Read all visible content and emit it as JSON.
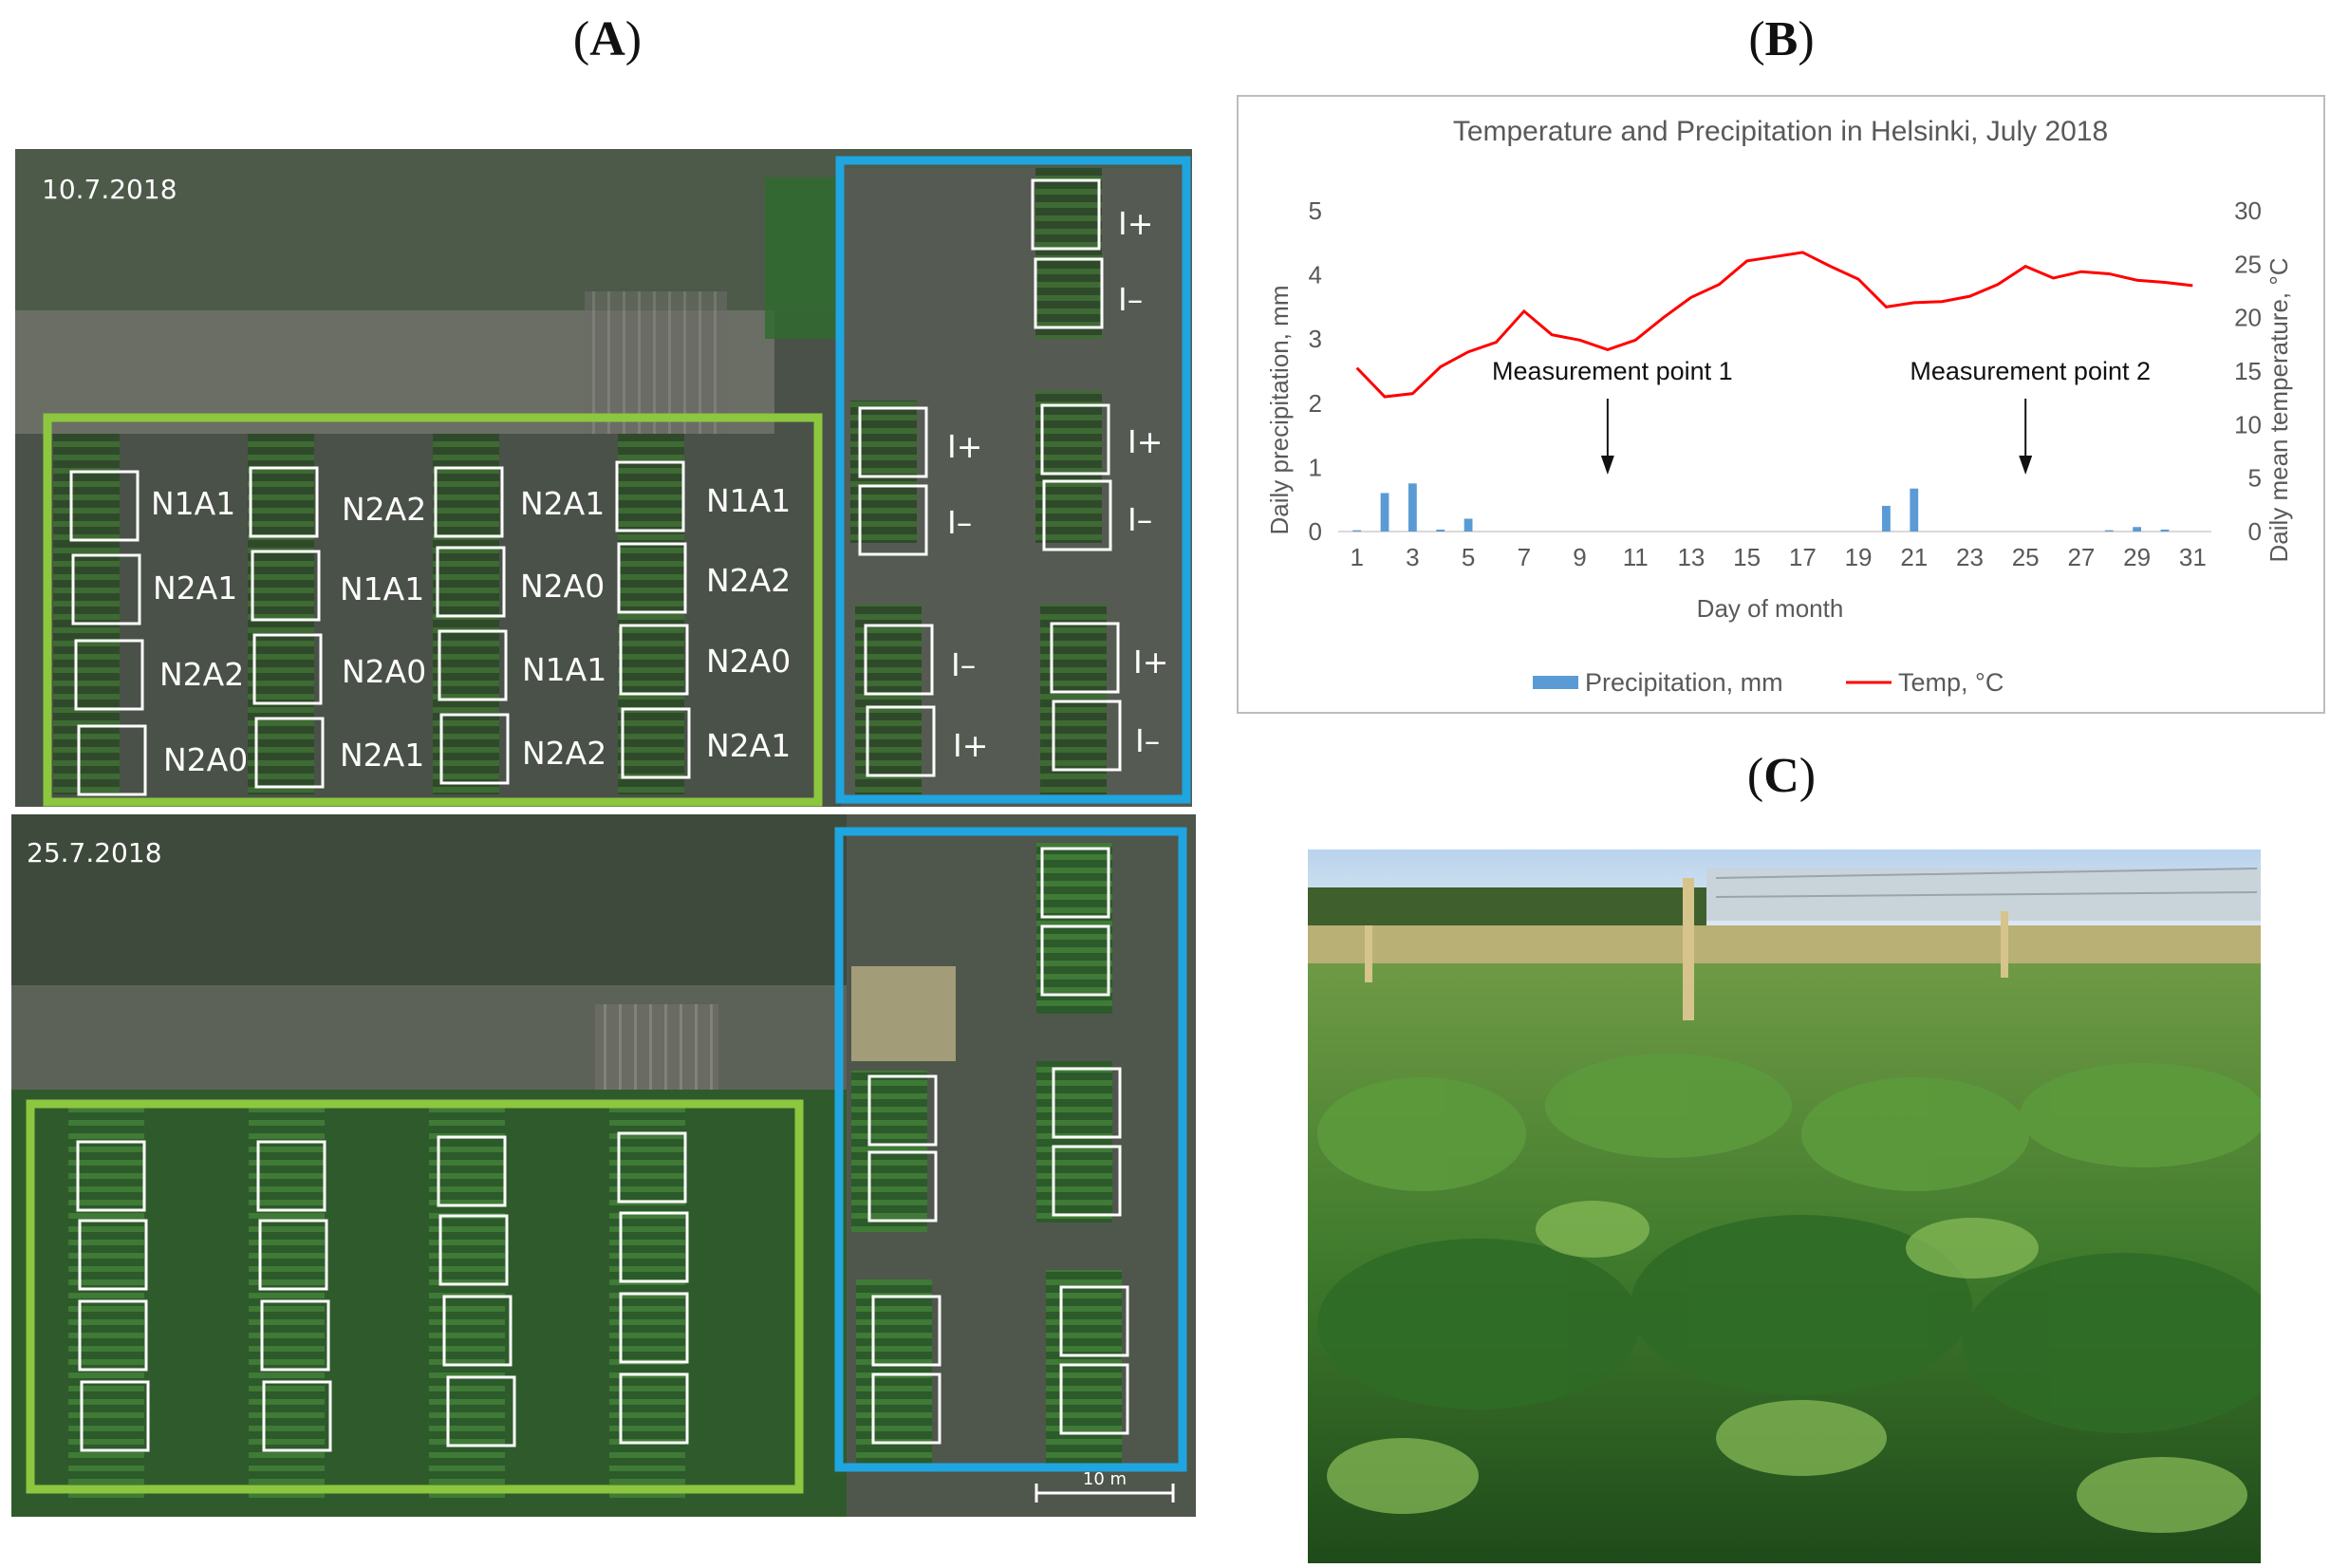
{
  "panels": {
    "a_label": "A",
    "b_label": "B",
    "c_label": "C"
  },
  "aerial": {
    "top_date": "10.7.2018",
    "bottom_date": "25.7.2018",
    "scale_label": "10 m",
    "nitrogen_plots": [
      [
        "N1A1",
        "N2A2",
        "N2A1",
        "N1A1"
      ],
      [
        "N2A1",
        "N1A1",
        "N2A0",
        "N2A2"
      ],
      [
        "N2A2",
        "N2A0",
        "N1A1",
        "N2A0"
      ],
      [
        "N2A0",
        "N2A1",
        "N2A2",
        "N2A1"
      ]
    ],
    "irrigation_plots": [
      [
        "I+",
        "I–",
        "I+",
        "I–"
      ],
      [
        "I+",
        "I–",
        "I+",
        "I–"
      ],
      [
        "I–",
        "I+",
        "I+",
        "I–"
      ]
    ],
    "colors": {
      "nitrogen_box": "#8dc63f",
      "irrigation_box": "#1fa5e0",
      "plot": "#ffffff"
    }
  },
  "chart_data": {
    "type": "bar+line",
    "title": "Temperature and Precipitation in Helsinki, July 2018",
    "xlabel": "Day of month",
    "ylabel_left": "Daily precipitation, mm",
    "ylabel_right": "Daily mean temperature, °C",
    "x": [
      1,
      2,
      3,
      4,
      5,
      6,
      7,
      8,
      9,
      10,
      11,
      12,
      13,
      14,
      15,
      16,
      17,
      18,
      19,
      20,
      21,
      22,
      23,
      24,
      25,
      26,
      27,
      28,
      29,
      30,
      31
    ],
    "x_ticks": [
      "1",
      "3",
      "5",
      "7",
      "9",
      "11",
      "13",
      "15",
      "17",
      "19",
      "21",
      "23",
      "25",
      "27",
      "29",
      "31"
    ],
    "ylim_left": [
      0,
      5
    ],
    "ylim_right": [
      0,
      30
    ],
    "y_ticks_left": [
      "0",
      "1",
      "2",
      "3",
      "4",
      "5"
    ],
    "y_ticks_right": [
      "0",
      "5",
      "10",
      "15",
      "20",
      "25",
      "30"
    ],
    "series": [
      {
        "name": "Precipitation, mm",
        "kind": "bar",
        "axis": "left",
        "color": "#5b9bd5",
        "values": [
          0.02,
          0.6,
          0.75,
          0.03,
          0.2,
          0,
          0,
          0,
          0,
          0,
          0,
          0,
          0,
          0,
          0,
          0,
          0,
          0,
          0,
          0.4,
          0.67,
          0,
          0,
          0,
          0,
          0,
          0,
          0.02,
          0.07,
          0.03,
          0
        ]
      },
      {
        "name": "Temp, °C",
        "kind": "line",
        "axis": "right",
        "color": "#ff0000",
        "values": [
          15.3,
          12.6,
          12.9,
          15.4,
          16.8,
          17.7,
          20.6,
          18.4,
          17.9,
          17.0,
          17.9,
          20.0,
          21.9,
          23.1,
          25.3,
          25.7,
          26.1,
          24.8,
          23.6,
          21.0,
          21.4,
          21.5,
          22.0,
          23.1,
          24.8,
          23.7,
          24.3,
          24.1,
          23.5,
          23.3,
          23.0
        ]
      }
    ],
    "annotations": [
      {
        "text": "Measurement point 1",
        "x": 10
      },
      {
        "text": "Measurement point 2",
        "x": 25
      }
    ],
    "legend_position": "bottom",
    "grid": false
  },
  "photo": {
    "sky_color": "#c9ddef",
    "foliage_color": "#4e8a34"
  }
}
